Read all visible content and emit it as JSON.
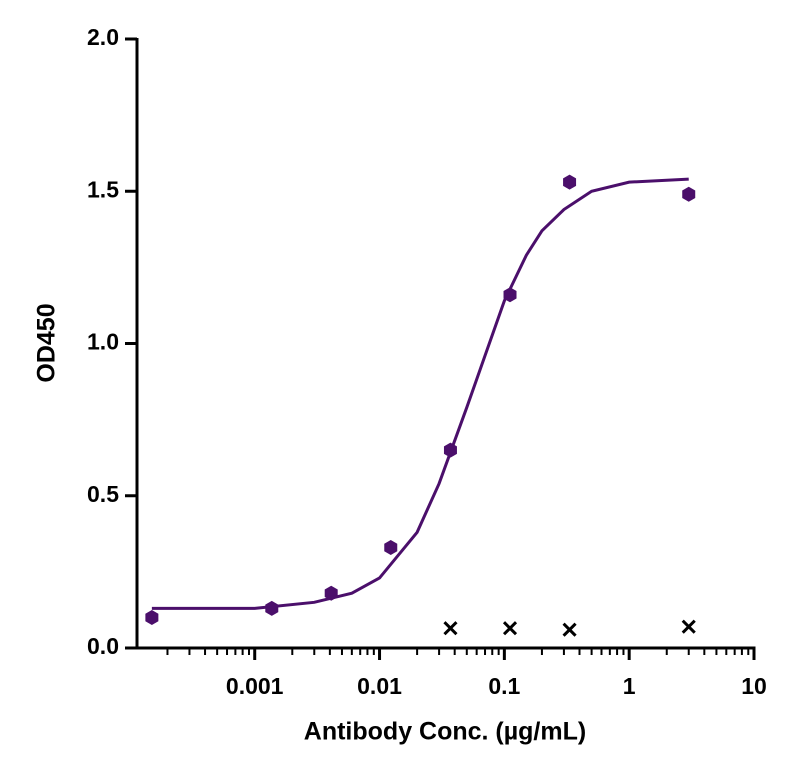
{
  "chart_data": {
    "type": "scatter",
    "xlabel": "Antibody Conc. (µg/mL)",
    "ylabel": "OD450",
    "xscale": "log",
    "xlim": [
      0.000114,
      10
    ],
    "xticks": [
      0.001,
      0.01,
      0.1,
      1,
      10
    ],
    "xminorticks": [
      0.0002,
      0.0003,
      0.0004,
      0.0005,
      0.0006,
      0.0007,
      0.0008,
      0.0009,
      0.002,
      0.003,
      0.004,
      0.005,
      0.006,
      0.007,
      0.008,
      0.009,
      0.02,
      0.03,
      0.04,
      0.05,
      0.06,
      0.07,
      0.08,
      0.09,
      0.2,
      0.3,
      0.4,
      0.5,
      0.6,
      0.7,
      0.8,
      0.9,
      2,
      3,
      4,
      5,
      6,
      7,
      8,
      9
    ],
    "ylim": [
      0,
      2
    ],
    "yticks": [
      {
        "value": 0,
        "label": "0.0"
      },
      {
        "value": 0.5,
        "label": "0.5"
      },
      {
        "value": 1,
        "label": "1.0"
      },
      {
        "value": 1.5,
        "label": "1.5"
      },
      {
        "value": 2,
        "label": "2.0"
      }
    ],
    "series": [
      {
        "marker": "line",
        "color": "#4b0f6b",
        "x": [
          0.00015,
          0.0003,
          0.001,
          0.003,
          0.006,
          0.01,
          0.02,
          0.03,
          0.05,
          0.07,
          0.1,
          0.15,
          0.2,
          0.3,
          0.5,
          1,
          3
        ],
        "values": [
          0.13,
          0.13,
          0.13,
          0.15,
          0.18,
          0.23,
          0.38,
          0.54,
          0.79,
          0.96,
          1.14,
          1.29,
          1.37,
          1.44,
          1.5,
          1.53,
          1.54
        ]
      },
      {
        "marker": "hexagon",
        "color": "#4b0f6b",
        "x": [
          0.00015,
          0.00137,
          0.0041,
          0.0123,
          0.037,
          0.111,
          0.333,
          3
        ],
        "values": [
          0.1,
          0.13,
          0.18,
          0.33,
          0.65,
          1.16,
          1.53,
          1.49
        ]
      },
      {
        "marker": "cross",
        "color": "#000000",
        "x": [
          0.037,
          0.111,
          0.333,
          3
        ],
        "values": [
          0.065,
          0.065,
          0.06,
          0.07
        ]
      }
    ]
  }
}
